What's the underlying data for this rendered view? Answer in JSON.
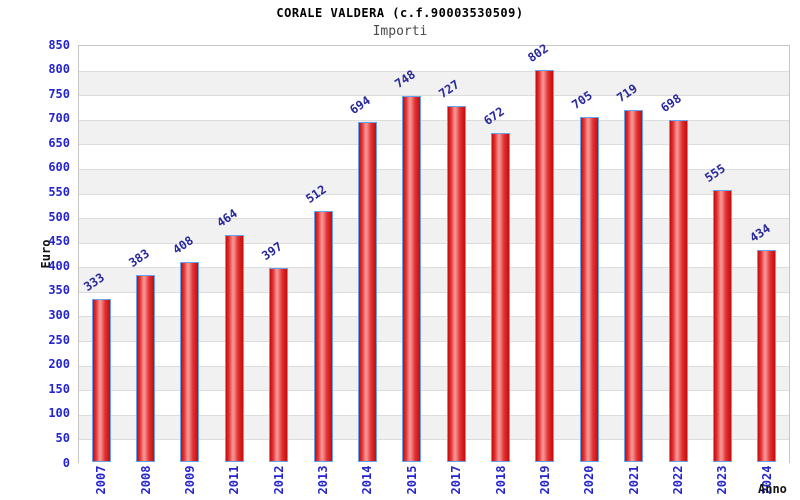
{
  "chart_data": {
    "type": "bar",
    "title": "CORALE VALDERA (c.f.90003530509)",
    "subtitle": "Importi",
    "xlabel": "Anno",
    "ylabel": "Euro",
    "categories": [
      "2007",
      "2008",
      "2009",
      "2011",
      "2012",
      "2013",
      "2014",
      "2015",
      "2017",
      "2018",
      "2019",
      "2020",
      "2021",
      "2022",
      "2023",
      "2024"
    ],
    "values": [
      333,
      383,
      408,
      464,
      397,
      512,
      694,
      748,
      727,
      672,
      802,
      705,
      719,
      698,
      555,
      434
    ],
    "ylim": [
      0,
      850
    ],
    "ytick_step": 50,
    "grid": true,
    "alternating_bands": true,
    "legend": "none"
  },
  "colors": {
    "title_color": "#000000",
    "subtitle_color": "#4a4a4a",
    "tick_label": "#2525cf",
    "value_label": "#28289e",
    "bar_edge": "#c60c0c",
    "bar_mid": "#f59090",
    "bar_border": "#63a3f0",
    "band_gray": "#f1f1f1",
    "gridline": "#dcdcdc",
    "plot_border": "#c6c6c6"
  }
}
